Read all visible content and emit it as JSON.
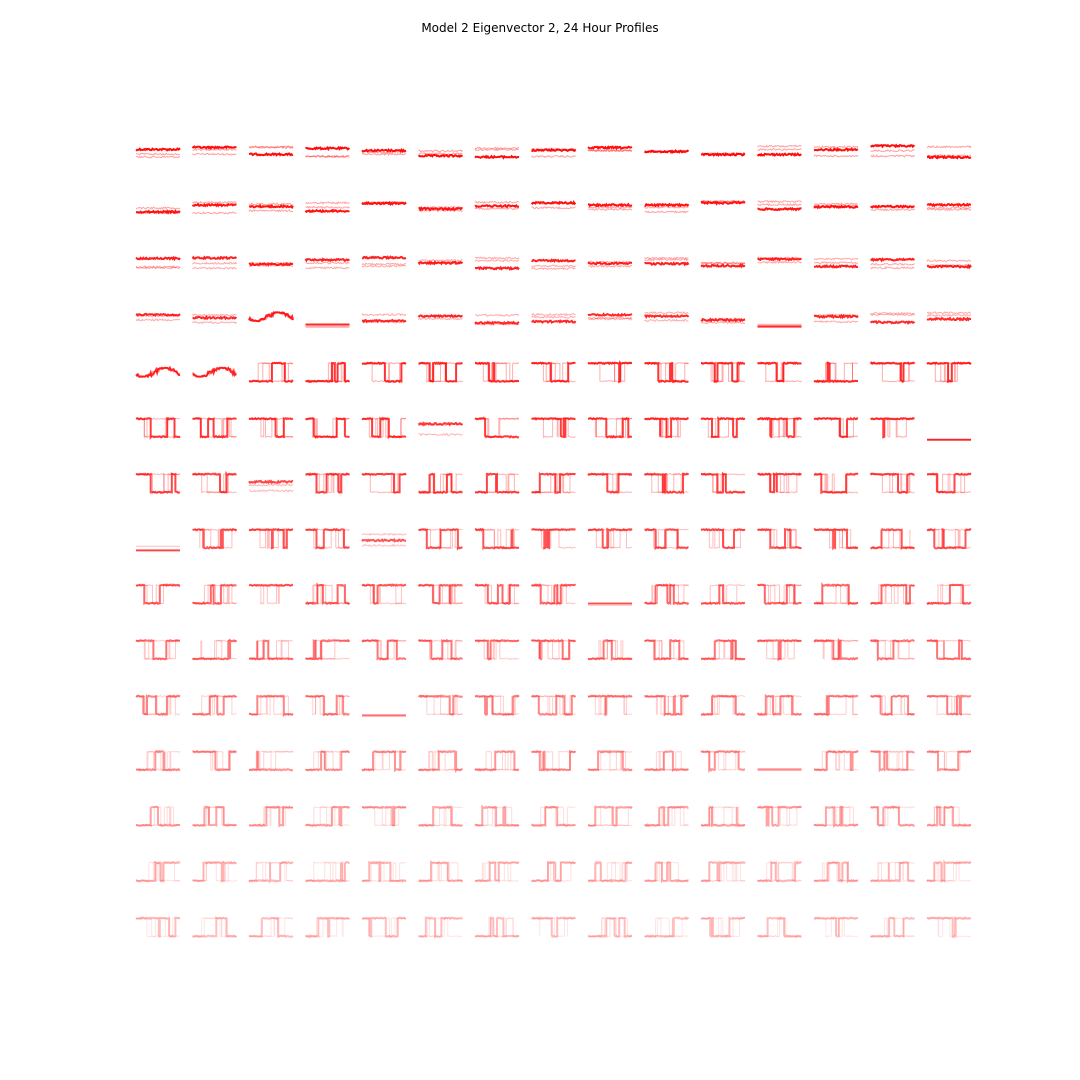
{
  "figure": {
    "title": "Model 2 Eigenvector 2, 24 Hour Profiles"
  },
  "chart_data": {
    "type": "line",
    "title": "Model 2 Eigenvector 2, 24 Hour Profiles",
    "panels": {
      "rows": 15,
      "cols": 15,
      "axes_visible": false,
      "x_span_hours": 24
    },
    "series_color": "#ff0000",
    "opacity_by_row": [
      0.95,
      0.92,
      0.88,
      0.84,
      0.8,
      0.76,
      0.72,
      0.66,
      0.6,
      0.54,
      0.48,
      0.42,
      0.36,
      0.3,
      0.26
    ],
    "shape_codes": [
      "FFFFFFFFFFFFFFF",
      "FFFFFFFFFFFFFFF",
      "FFFFFFFFFFFFFFF",
      "FFWLFFFFFFFLFFF",
      "WWUUHHHHHHHHUHH",
      "HDDDDFPHDDDHDDN",
      "DDFDDUUUPDDDDHH",
      "LDDDFDDDDDHDDUD",
      "DUPUDDDDLUUDUUU",
      "DUUUDDDDUDUDDDD",
      "DUUDLDDDDDUUUDD",
      "UDUUUUUDUUDLUDD",
      "UUUUDUUUUUUDUDU",
      "UUUUUUUUUUUUUUU",
      "DUUUDUUDUUDUDUD"
    ],
    "notes": "Grid of small 24-hour load profile curves; each cell is a step/line trace without axes."
  }
}
